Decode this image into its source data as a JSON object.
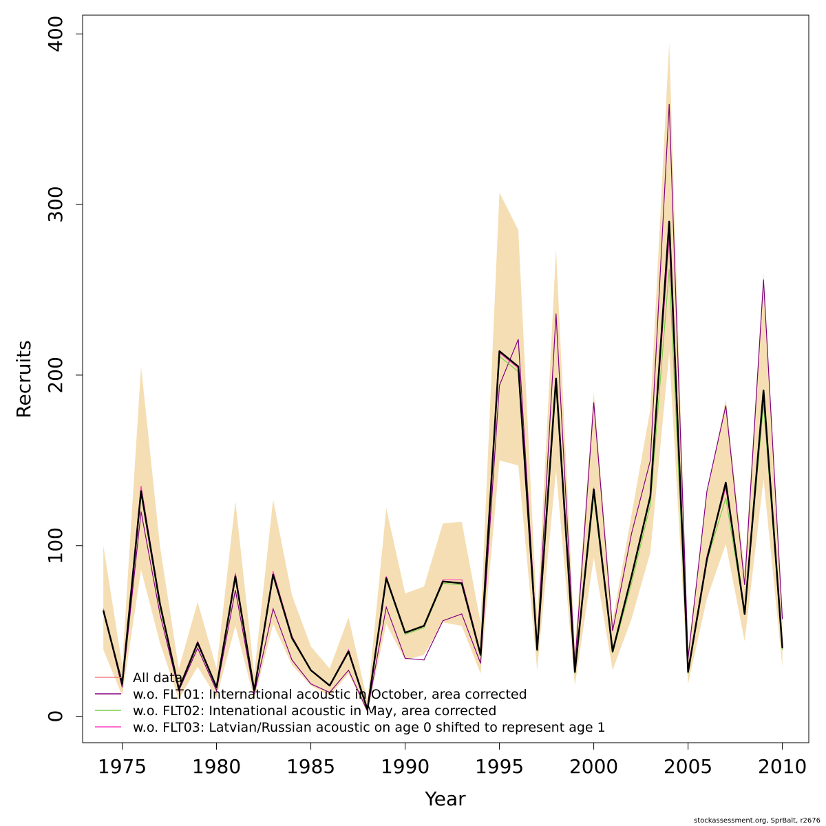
{
  "chart_data": {
    "type": "line",
    "xlabel": "Year",
    "ylabel": "Recruits",
    "xlim": [
      1972.9,
      2011.4
    ],
    "ylim": [
      -15.5,
      411
    ],
    "xticks": [
      1975,
      1980,
      1985,
      1990,
      1995,
      2000,
      2005,
      2010
    ],
    "yticks": [
      0,
      100,
      200,
      300,
      400
    ],
    "grid": false,
    "legend_position": "bottom-left",
    "band_color": "#F5DEB3",
    "estimate_color": "#000000",
    "x": [
      1974,
      1975,
      1976,
      1977,
      1978,
      1979,
      1980,
      1981,
      1982,
      1983,
      1984,
      1985,
      1986,
      1987,
      1988,
      1989,
      1990,
      1991,
      1992,
      1993,
      1994,
      1995,
      1996,
      1997,
      1998,
      1999,
      2000,
      2001,
      2002,
      2003,
      2004,
      2005,
      2006,
      2007,
      2008,
      2009,
      2010
    ],
    "estimate": [
      62,
      19,
      132,
      66,
      16,
      43,
      17,
      82,
      15,
      83,
      46,
      27,
      18,
      38,
      4,
      81,
      49,
      53,
      79,
      78,
      36,
      214,
      205,
      39,
      198,
      26,
      133,
      38,
      82,
      129,
      290,
      26,
      92,
      137,
      60,
      191,
      40
    ],
    "ci_upper": [
      100,
      30,
      205,
      100,
      28,
      67,
      28,
      126,
      25,
      127,
      71,
      41,
      28,
      58,
      9,
      122,
      72,
      76,
      113,
      114,
      55,
      307,
      285,
      57,
      274,
      40,
      190,
      56,
      118,
      180,
      395,
      38,
      130,
      186,
      85,
      260,
      57
    ],
    "ci_lower": [
      39,
      12,
      86,
      43,
      10,
      29,
      11,
      53,
      10,
      54,
      30,
      18,
      12,
      25,
      2,
      54,
      33,
      36,
      55,
      53,
      25,
      150,
      147,
      27,
      144,
      18,
      93,
      27,
      57,
      96,
      213,
      19,
      69,
      101,
      44,
      139,
      29
    ],
    "series": [
      {
        "name": "All data",
        "color": "#F08080",
        "values": [
          62,
          19,
          132,
          66,
          16,
          43,
          17,
          82,
          15,
          83,
          46,
          27,
          18,
          38,
          4,
          81,
          49,
          53,
          79,
          78,
          36,
          214,
          205,
          39,
          198,
          26,
          133,
          38,
          82,
          129,
          290,
          26,
          92,
          137,
          60,
          191,
          40
        ]
      },
      {
        "name": "w.o. FLT01:      International acoustic in October, area corrected",
        "color": "#800080",
        "values": [
          62,
          17,
          120,
          60,
          15,
          40,
          15,
          74,
          13,
          63,
          33,
          19,
          14,
          27,
          3,
          64,
          34,
          33,
          56,
          60,
          31,
          194,
          221,
          41,
          236,
          30,
          184,
          50,
          107,
          150,
          359,
          34,
          132,
          182,
          77,
          256,
          57
        ]
      },
      {
        "name": "w.o. FLT02: Intenational acoustic in May, area corrected",
        "color": "#7CCD4C",
        "values": [
          62,
          19,
          130,
          64,
          16,
          43,
          17,
          81,
          15,
          82,
          45,
          27,
          18,
          38,
          4,
          80,
          48,
          52,
          78,
          77,
          35,
          211,
          202,
          38,
          193,
          25,
          129,
          37,
          78,
          124,
          262,
          25,
          91,
          128,
          60,
          183,
          39
        ]
      },
      {
        "name": "w.o. FLT03: Latvian/Russian acoustic on age 0 shifted to represent age 1",
        "color": "#FF40C0",
        "values": [
          63,
          19,
          135,
          67,
          16,
          44,
          17,
          84,
          15,
          85,
          47,
          27,
          18,
          39,
          4,
          82,
          49,
          53,
          80,
          80,
          37,
          213,
          204,
          39,
          196,
          26,
          134,
          38,
          82,
          130,
          280,
          27,
          94,
          134,
          61,
          188,
          40
        ]
      }
    ]
  },
  "footnote": "stockassessment.org, SprBalt, r2676"
}
